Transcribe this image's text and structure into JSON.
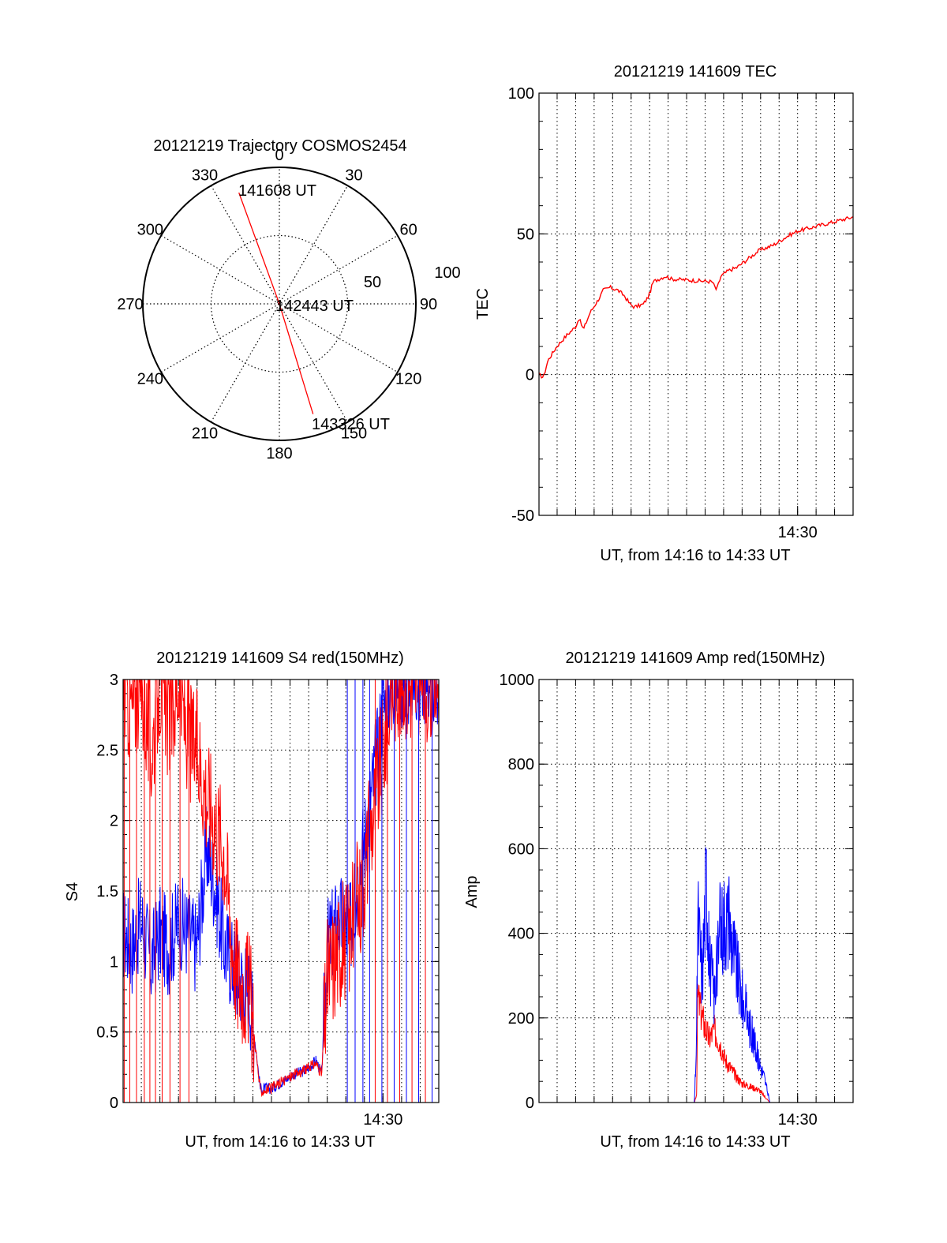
{
  "colors": {
    "red": "#ff0000",
    "blue": "#0000ff",
    "axis": "#000000",
    "grid": "#000000"
  },
  "chart_data": [
    {
      "type": "polar",
      "title": "20121219 Trajectory COSMOS2454",
      "angle_labels": [
        "0",
        "30",
        "60",
        "90",
        "120",
        "150",
        "180",
        "210",
        "240",
        "270",
        "300",
        "330"
      ],
      "radius_labels": [
        "50",
        "100"
      ],
      "series": [
        {
          "color": "#ff0000",
          "points": [
            {
              "az": 340,
              "el": 12
            },
            {
              "az": 20,
              "el": 90
            },
            {
              "az": 163,
              "el": 14
            }
          ]
        }
      ],
      "annotations": [
        "141608 UT",
        "142443 UT",
        "143326 UT"
      ]
    },
    {
      "type": "line",
      "title": "20121219 141609 TEC",
      "xlabel": "UT, from 14:16 to 14:33 UT",
      "ylabel": "TEC",
      "xlim": [
        14.267,
        14.55
      ],
      "ylim": [
        -50,
        100
      ],
      "yticks": [
        "-50",
        "0",
        "50",
        "100"
      ],
      "xticks": [
        {
          "x": 14.5,
          "label": "14:30"
        }
      ],
      "grid": true,
      "series": [
        {
          "color": "#ff0000",
          "x": [
            14.267,
            14.271,
            14.275,
            14.283,
            14.292,
            14.3,
            14.303,
            14.307,
            14.313,
            14.321,
            14.325,
            14.331,
            14.338,
            14.344,
            14.349,
            14.353,
            14.361,
            14.366,
            14.37,
            14.375,
            14.381,
            14.386,
            14.423,
            14.427,
            14.431,
            14.438,
            14.445,
            14.455,
            14.465,
            14.478,
            14.49,
            14.5,
            14.51,
            14.52,
            14.53,
            14.54,
            14.55
          ],
          "y": [
            0,
            -1,
            5,
            10,
            14,
            17,
            20,
            16,
            22,
            27,
            30,
            31,
            30,
            28,
            25,
            24,
            25,
            28,
            33,
            34,
            35,
            34,
            33,
            30,
            35,
            37,
            38,
            41,
            44,
            46,
            49,
            51,
            52,
            53,
            54,
            55,
            56
          ]
        }
      ]
    },
    {
      "type": "line",
      "title": "20121219 141609 S4 red(150MHz)",
      "xlabel": "UT, from 14:16 to 14:33 UT",
      "ylabel": "S4",
      "xlim": [
        14.267,
        14.55
      ],
      "ylim": [
        0,
        3
      ],
      "yticks": [
        "0",
        "0.5",
        "1",
        "1.5",
        "2",
        "2.5",
        "3"
      ],
      "xticks": [
        {
          "x": 14.5,
          "label": "14:30"
        }
      ],
      "grid": true,
      "series": [
        {
          "color": "#0000ff",
          "x": [
            14.267,
            14.275,
            14.283,
            14.292,
            14.3,
            14.308,
            14.317,
            14.325,
            14.333,
            14.342,
            14.35,
            14.358,
            14.364,
            14.37,
            14.38,
            14.39,
            14.4,
            14.41,
            14.42,
            14.428,
            14.434,
            14.44,
            14.445,
            14.45,
            14.46,
            14.47,
            14.48,
            14.49,
            14.5,
            14.51,
            14.52,
            14.53,
            14.54,
            14.55
          ],
          "y": [
            1.2,
            1.1,
            1.3,
            1.0,
            1.2,
            1.1,
            1.3,
            1.2,
            1.1,
            1.8,
            1.5,
            1.1,
            1.0,
            0.9,
            0.8,
            0.1,
            0.1,
            0.15,
            0.2,
            0.22,
            0.25,
            0.3,
            0.2,
            1.1,
            1.3,
            1.2,
            1.7,
            2.2,
            2.8,
            3.0,
            3.0,
            3.0,
            3.0,
            3.0
          ]
        },
        {
          "color": "#ff0000",
          "x": [
            14.267,
            14.275,
            14.283,
            14.292,
            14.3,
            14.308,
            14.317,
            14.325,
            14.333,
            14.342,
            14.35,
            14.358,
            14.364,
            14.37,
            14.38,
            14.39,
            14.4,
            14.41,
            14.42,
            14.428,
            14.434,
            14.44,
            14.445,
            14.45,
            14.46,
            14.47,
            14.48,
            14.49,
            14.5,
            14.51,
            14.52,
            14.53,
            14.54,
            14.55
          ],
          "y": [
            3.0,
            2.8,
            3.0,
            2.5,
            3.0,
            2.7,
            3.0,
            2.6,
            2.5,
            2.2,
            2.0,
            1.8,
            1.2,
            0.9,
            0.8,
            0.08,
            0.1,
            0.15,
            0.2,
            0.22,
            0.25,
            0.28,
            0.2,
            0.9,
            1.1,
            1.2,
            1.5,
            2.0,
            2.5,
            3.0,
            3.0,
            3.0,
            3.0,
            3.0
          ]
        }
      ]
    },
    {
      "type": "line",
      "title": "20121219 141609 Amp red(150MHz)",
      "xlabel": "UT, from 14:16 to 14:33 UT",
      "ylabel": "Amp",
      "xlim": [
        14.267,
        14.55
      ],
      "ylim": [
        0,
        1000
      ],
      "yticks": [
        "0",
        "200",
        "400",
        "600",
        "800",
        "1000"
      ],
      "xticks": [
        {
          "x": 14.5,
          "label": "14:30"
        }
      ],
      "grid": true,
      "series": [
        {
          "color": "#ff0000",
          "x": [
            14.267,
            14.4,
            14.407,
            14.409,
            14.41,
            14.414,
            14.42,
            14.425,
            14.43,
            14.435,
            14.44,
            14.445,
            14.45,
            14.455,
            14.46,
            14.465,
            14.47,
            14.475,
            14.55
          ],
          "y": [
            0,
            0,
            0,
            20,
            250,
            200,
            150,
            170,
            140,
            100,
            80,
            60,
            45,
            40,
            35,
            30,
            15,
            0,
            0
          ]
        },
        {
          "color": "#0000ff",
          "x": [
            14.267,
            14.4,
            14.407,
            14.409,
            14.41,
            14.414,
            14.418,
            14.42,
            14.425,
            14.43,
            14.435,
            14.44,
            14.445,
            14.45,
            14.455,
            14.46,
            14.465,
            14.47,
            14.475,
            14.55
          ],
          "y": [
            0,
            0,
            0,
            150,
            450,
            300,
            550,
            350,
            250,
            400,
            450,
            400,
            320,
            250,
            200,
            150,
            100,
            60,
            0,
            0
          ]
        }
      ]
    }
  ]
}
